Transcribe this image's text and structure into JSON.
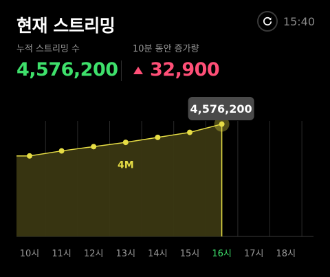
{
  "header": {
    "title": "현재 스트리밍",
    "time": "15:40",
    "refresh_icon": "refresh-icon"
  },
  "stats": {
    "cumulative_label": "누적 스트리밍 수",
    "cumulative_value": "4,576,200",
    "delta_label": "10분 동안 증가량",
    "delta_value": "32,900",
    "delta_icon": "triangle-up-icon"
  },
  "colors": {
    "accent_green": "#3ee06b",
    "accent_red": "#ff4f77",
    "line_yellow": "#e6dd45",
    "fill_olive": "#3a3712"
  },
  "chart_data": {
    "type": "area",
    "categories": [
      "10시",
      "11시",
      "12시",
      "13시",
      "14시",
      "15시",
      "16시",
      "17시",
      "18시"
    ],
    "series": [
      {
        "values": [
          4.13,
          4.2,
          4.26,
          4.32,
          4.39,
          4.46,
          4.5762,
          null,
          null
        ]
      }
    ],
    "units": "M",
    "annotation": "4M",
    "annotation_value": 4.0,
    "tooltip": "4,576,200",
    "highlighted_category": "16시",
    "ylim": [
      3.0,
      4.62
    ]
  }
}
